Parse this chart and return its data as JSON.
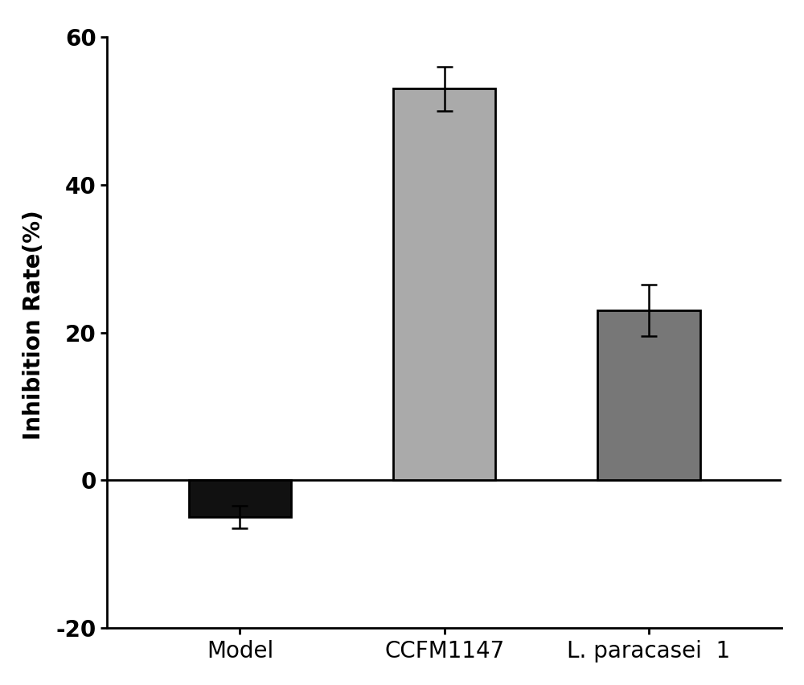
{
  "categories": [
    "Model",
    "CCFM1147",
    "L. paracasei  1"
  ],
  "values": [
    -5.0,
    53.0,
    23.0
  ],
  "errors": [
    1.5,
    3.0,
    3.5
  ],
  "bar_colors": [
    "#111111",
    "#aaaaaa",
    "#777777"
  ],
  "bar_edge_colors": [
    "#000000",
    "#000000",
    "#000000"
  ],
  "ylabel": "Inhibition Rate(%)",
  "ylim": [
    -20,
    62
  ],
  "yticks": [
    -20,
    0,
    20,
    40,
    60
  ],
  "bar_width": 0.5,
  "bar_positions": [
    1,
    2,
    3
  ],
  "xlim": [
    0.35,
    3.65
  ],
  "error_capsize": 7,
  "error_linewidth": 1.8,
  "error_color": "#000000",
  "spine_linewidth": 2.0,
  "ylabel_fontsize": 20,
  "tick_fontsize": 20,
  "xtick_fontsize": 20,
  "background_color": "#ffffff"
}
